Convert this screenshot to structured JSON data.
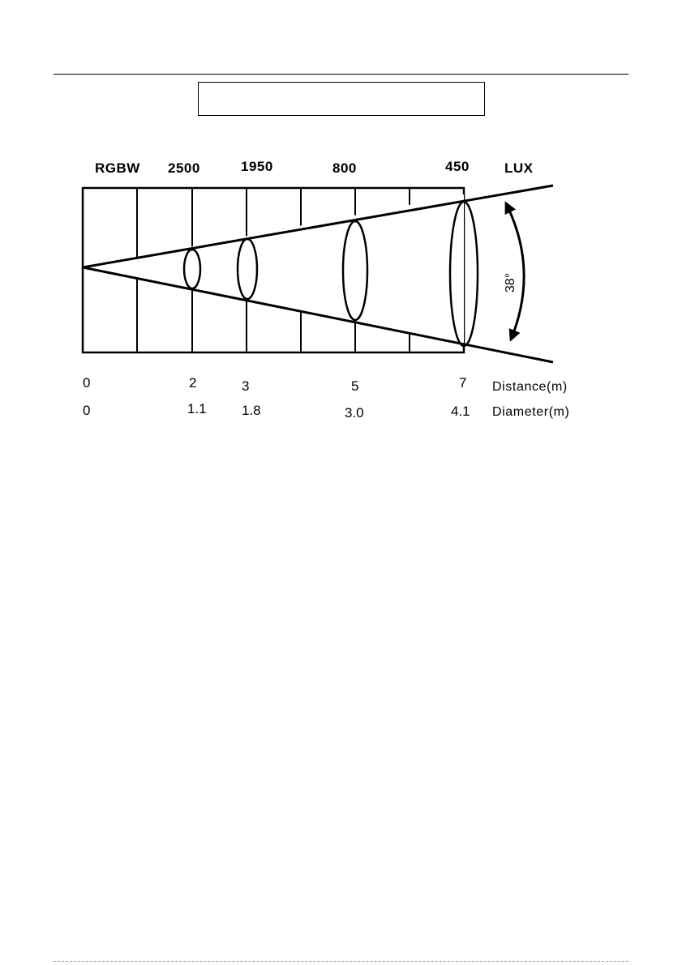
{
  "document": {
    "title_box_text": ""
  },
  "diagram": {
    "color_header_label": "RGBW",
    "lux_unit_label": "LUX",
    "lux_values": [
      "2500",
      "1950",
      "800",
      "450"
    ],
    "beam_angle_label": "38°",
    "distance_label": "Distance(m)",
    "diameter_label": "Diameter(m)",
    "distances": [
      "0",
      "2",
      "3",
      "5",
      "7"
    ],
    "diameters": [
      "0",
      "1.1",
      "1.8",
      "3.0",
      "4.1"
    ]
  }
}
